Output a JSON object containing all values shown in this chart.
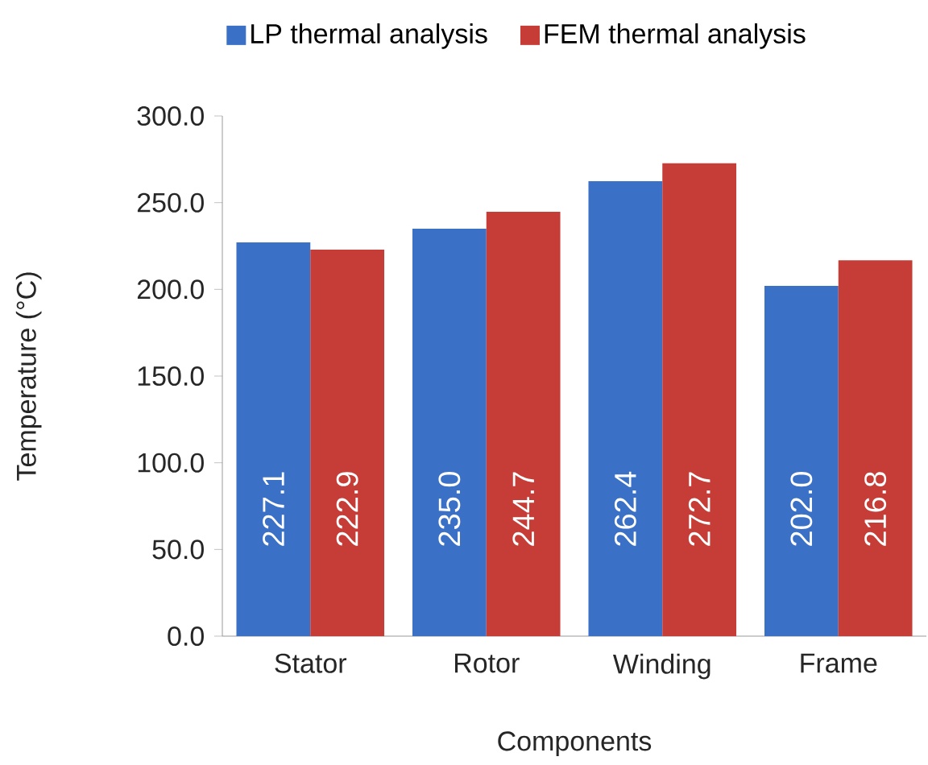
{
  "chart_data": {
    "type": "bar",
    "xlabel": "Components",
    "ylabel": "Temperature (°C)",
    "categories": [
      "Stator",
      "Rotor",
      "Winding",
      "Frame"
    ],
    "series": [
      {
        "name": "LP thermal analysis",
        "color": "#3a70c6",
        "values": [
          227.1,
          235.0,
          262.4,
          202.0
        ],
        "value_labels": [
          "227.1",
          "235.0",
          "262.4",
          "202.0"
        ]
      },
      {
        "name": "FEM thermal analysis",
        "color": "#c63d38",
        "values": [
          222.9,
          244.7,
          272.7,
          216.8
        ],
        "value_labels": [
          "222.9",
          "244.7",
          "272.7",
          "216.8"
        ]
      }
    ],
    "ylim": [
      0,
      300
    ],
    "yticks": [
      {
        "value": 0,
        "label": "0.0"
      },
      {
        "value": 50,
        "label": "50.0"
      },
      {
        "value": 100,
        "label": "100.0"
      },
      {
        "value": 150,
        "label": "150.0"
      },
      {
        "value": 200,
        "label": "200.0"
      },
      {
        "value": 250,
        "label": "250.0"
      },
      {
        "value": 300,
        "label": "300.0"
      }
    ],
    "legend": "top"
  }
}
